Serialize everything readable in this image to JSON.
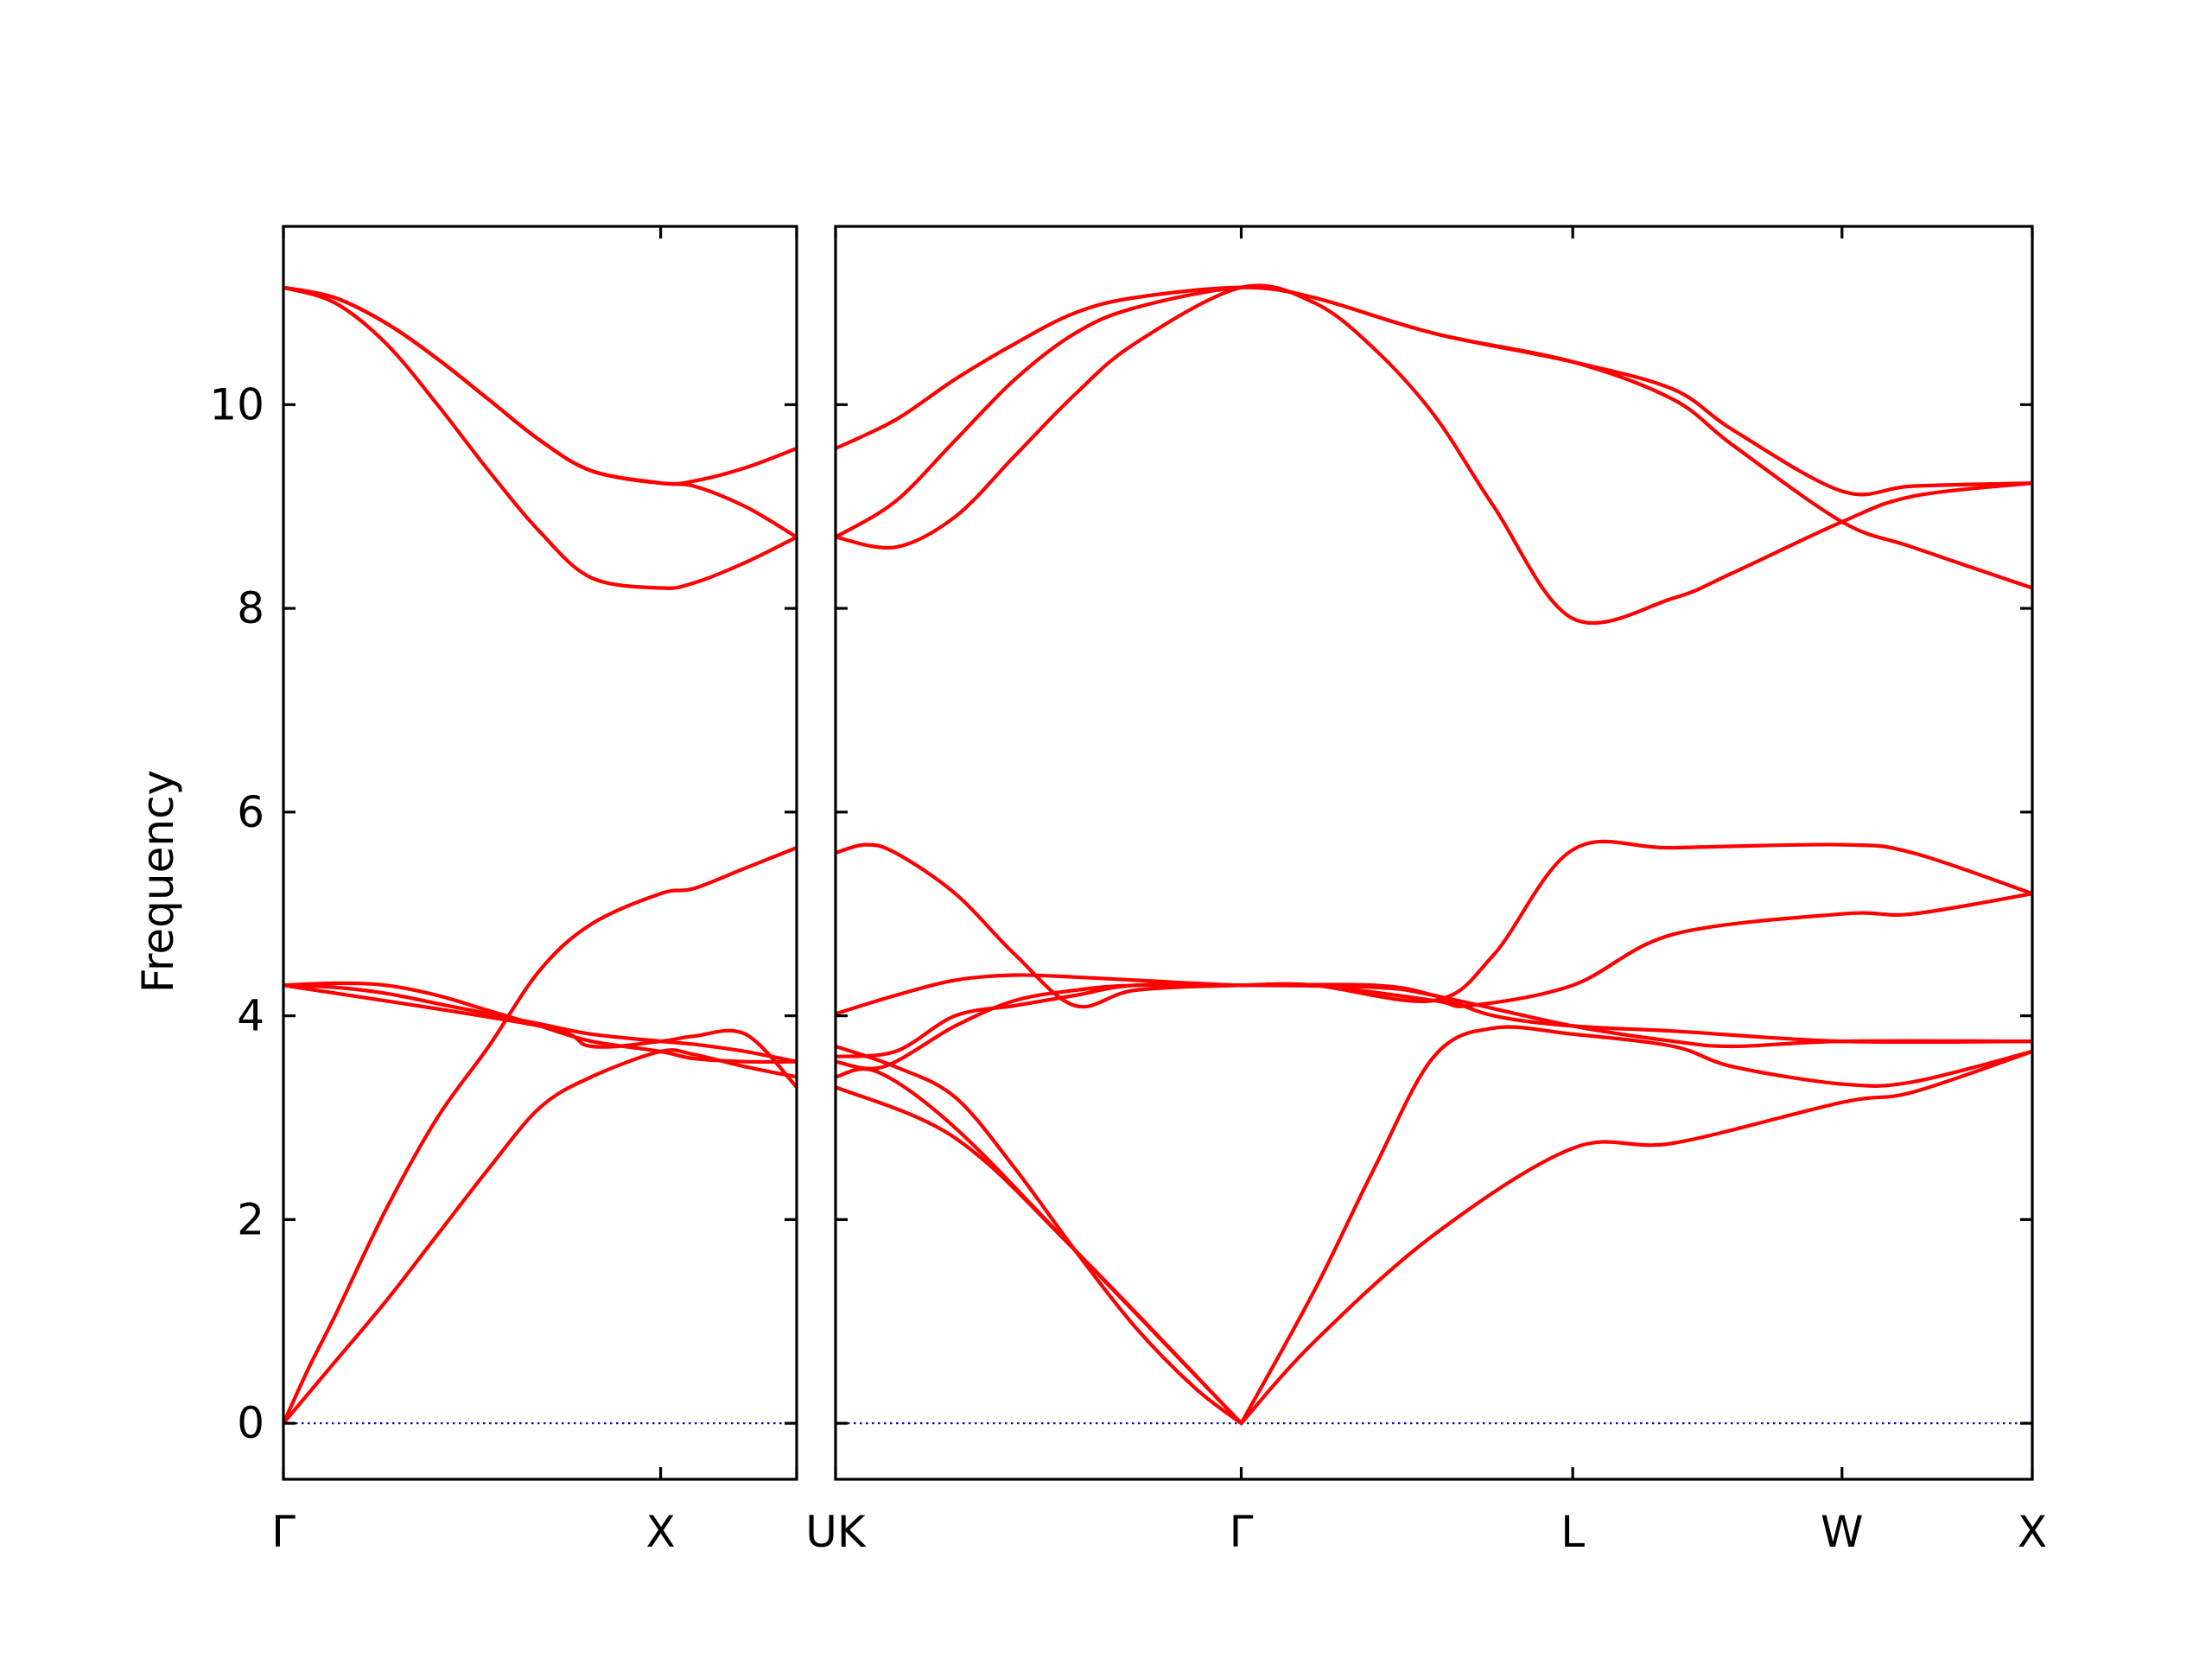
{
  "chart_data": {
    "type": "line",
    "ylabel": "Frequency",
    "ylim": [
      -0.55,
      11.75
    ],
    "yticks": [
      "0",
      "2",
      "4",
      "6",
      "8",
      "10"
    ],
    "colors": {
      "band": "#ff0000",
      "zero_line": "#0000cc",
      "frame": "#000000"
    },
    "grid": false,
    "panels": [
      {
        "xlim": [
          0,
          1.0
        ],
        "tick_positions": [
          0,
          0.735,
          1.0
        ],
        "tick_labels": [
          "Γ",
          "X",
          ""
        ],
        "series": [
          {
            "name": "",
            "x": [
              0,
              0.05,
              0.1,
              0.2,
              0.3,
              0.4,
              0.5,
              0.6,
              0.735,
              0.8,
              0.9,
              1.0
            ],
            "y": [
              0,
              0.55,
              1.05,
              2.1,
              3.0,
              3.7,
              4.45,
              4.9,
              5.2,
              5.25,
              5.45,
              5.65
            ]
          },
          {
            "name": "",
            "x": [
              0,
              0.1,
              0.2,
              0.3,
              0.4,
              0.5,
              0.6,
              0.735,
              0.8,
              0.9,
              1.0
            ],
            "y": [
              0,
              0.6,
              1.2,
              1.85,
              2.5,
              3.1,
              3.4,
              3.65,
              3.62,
              3.5,
              3.4
            ]
          },
          {
            "name": "",
            "x": [
              0,
              0.1,
              0.2,
              0.3,
              0.4,
              0.5,
              0.6,
              0.735,
              0.8,
              0.9,
              1.0
            ],
            "y": [
              4.3,
              4.28,
              4.22,
              4.12,
              4.02,
              3.92,
              3.82,
              3.75,
              3.72,
              3.65,
              3.55
            ]
          },
          {
            "name": "",
            "x": [
              0,
              0.1,
              0.2,
              0.3,
              0.4,
              0.5,
              0.6,
              0.735,
              0.8,
              0.9,
              1.0
            ],
            "y": [
              4.3,
              4.32,
              4.3,
              4.2,
              4.05,
              3.9,
              3.75,
              3.65,
              3.58,
              3.55,
              3.55
            ]
          },
          {
            "name": "",
            "x": [
              0,
              0.5,
              0.6,
              0.735,
              0.8,
              0.9,
              1.0
            ],
            "y": [
              4.3,
              3.9,
              3.7,
              3.75,
              3.8,
              3.82,
              3.3
            ]
          },
          {
            "name": "",
            "x": [
              0,
              0.1,
              0.2,
              0.3,
              0.4,
              0.5,
              0.6,
              0.735,
              0.8,
              0.9,
              1.0
            ],
            "y": [
              11.15,
              11.0,
              10.6,
              10.0,
              9.35,
              8.75,
              8.3,
              8.2,
              8.25,
              8.45,
              8.7
            ]
          },
          {
            "name": "",
            "x": [
              0,
              0.1,
              0.2,
              0.3,
              0.4,
              0.5,
              0.6,
              0.735,
              0.8,
              0.9,
              1.0
            ],
            "y": [
              11.15,
              11.05,
              10.8,
              10.45,
              10.05,
              9.65,
              9.35,
              9.23,
              9.2,
              9.0,
              8.7
            ]
          },
          {
            "name": "",
            "x": [
              0,
              0.1,
              0.2,
              0.3,
              0.4,
              0.5,
              0.6,
              0.735,
              0.8,
              0.9,
              1.0
            ],
            "y": [
              11.15,
              11.05,
              10.8,
              10.45,
              10.05,
              9.65,
              9.35,
              9.23,
              9.25,
              9.38,
              9.57
            ]
          }
        ]
      },
      {
        "xlim": [
          0,
          1.0
        ],
        "tick_positions": [
          0,
          0.339,
          0.616,
          0.841,
          1.0
        ],
        "tick_labels": [
          "UK",
          "Γ",
          "L",
          "W",
          "X"
        ],
        "series": [
          {
            "name": "",
            "x": [
              0,
              0.05,
              0.1,
              0.15,
              0.2,
              0.25,
              0.3,
              0.339
            ],
            "y": [
              3.7,
              3.5,
              3.2,
              2.5,
              1.7,
              0.95,
              0.35,
              0
            ]
          },
          {
            "name": "",
            "x": [
              0,
              0.035,
              0.1,
              0.2,
              0.339
            ],
            "y": [
              3.4,
              3.45,
              2.9,
              1.7,
              0
            ]
          },
          {
            "name": "",
            "x": [
              0,
              0.1,
              0.2,
              0.339
            ],
            "y": [
              3.3,
              2.8,
              1.7,
              0
            ]
          },
          {
            "name": "",
            "x": [
              0.339,
              0.4,
              0.5,
              0.616,
              0.7,
              0.841,
              0.9,
              1.0
            ],
            "y": [
              0,
              0.8,
              1.85,
              2.7,
              2.75,
              3.15,
              3.25,
              3.65
            ]
          },
          {
            "name": "",
            "x": [
              0.339,
              0.4,
              0.45,
              0.5,
              0.55,
              0.616,
              0.7,
              0.75,
              0.841,
              0.9,
              1.0
            ],
            "y": [
              0,
              1.3,
              2.5,
              3.6,
              3.88,
              3.82,
              3.7,
              3.5,
              3.33,
              3.35,
              3.65
            ]
          },
          {
            "name": "",
            "x": [
              0,
              0.04,
              0.1,
              0.15,
              0.2,
              0.25,
              0.339,
              0.45,
              0.5,
              0.55,
              0.616,
              0.7,
              0.841,
              1.0
            ],
            "y": [
              3.55,
              3.5,
              3.9,
              4.15,
              4.25,
              4.3,
              4.3,
              4.3,
              4.2,
              4.0,
              3.9,
              3.85,
              3.75,
              3.75
            ]
          },
          {
            "name": "",
            "x": [
              0,
              0.05,
              0.1,
              0.15,
              0.2,
              0.25,
              0.339,
              0.45,
              0.5,
              0.616,
              0.7,
              0.75,
              0.841,
              1.0
            ],
            "y": [
              3.6,
              3.65,
              4.0,
              4.1,
              4.2,
              4.3,
              4.3,
              4.28,
              4.2,
              3.9,
              3.75,
              3.7,
              3.75,
              3.75
            ]
          },
          {
            "name": "",
            "x": [
              0,
              0.05,
              0.1,
              0.15,
              0.2,
              0.25,
              0.339,
              0.4,
              0.5,
              0.53,
              0.616,
              0.7,
              0.841,
              0.9,
              1.0
            ],
            "y": [
              4.02,
              4.2,
              4.35,
              4.4,
              4.38,
              4.35,
              4.3,
              4.3,
              4.15,
              4.1,
              4.3,
              4.8,
              5.0,
              5.0,
              5.2
            ]
          },
          {
            "name": "",
            "x": [
              0,
              0.025,
              0.05,
              0.1,
              0.15,
              0.2,
              0.25,
              0.339,
              0.4,
              0.5,
              0.55,
              0.616,
              0.7,
              0.841,
              0.9,
              1.0
            ],
            "y": [
              5.6,
              5.68,
              5.6,
              5.2,
              4.6,
              4.1,
              4.25,
              4.3,
              4.3,
              4.15,
              4.6,
              5.63,
              5.65,
              5.68,
              5.6,
              5.2
            ]
          },
          {
            "name": "",
            "x": [
              0,
              0.05,
              0.1,
              0.15,
              0.2,
              0.25,
              0.339,
              0.4,
              0.45,
              0.5,
              0.55,
              0.616,
              0.7,
              0.75,
              0.841,
              0.9,
              1.0
            ],
            "y": [
              8.7,
              8.6,
              8.9,
              9.5,
              10.1,
              10.6,
              11.15,
              11.0,
              10.55,
              9.9,
              9.0,
              7.9,
              8.1,
              8.35,
              8.85,
              9.1,
              9.23
            ]
          },
          {
            "name": "",
            "x": [
              0,
              0.05,
              0.1,
              0.15,
              0.2,
              0.25,
              0.339,
              0.4,
              0.5,
              0.616,
              0.7,
              0.75,
              0.841,
              0.9,
              1.0
            ],
            "y": [
              8.7,
              9.05,
              9.65,
              10.25,
              10.7,
              10.95,
              11.15,
              11.05,
              10.7,
              10.42,
              10.05,
              9.6,
              8.85,
              8.6,
              8.2
            ]
          },
          {
            "name": "",
            "x": [
              0,
              0.05,
              0.1,
              0.15,
              0.2,
              0.25,
              0.339,
              0.4,
              0.5,
              0.616,
              0.7,
              0.75,
              0.841,
              0.9,
              1.0
            ],
            "y": [
              9.57,
              9.85,
              10.25,
              10.6,
              10.9,
              11.05,
              11.15,
              11.05,
              10.7,
              10.42,
              10.15,
              9.75,
              9.15,
              9.2,
              9.23
            ]
          }
        ]
      }
    ]
  }
}
